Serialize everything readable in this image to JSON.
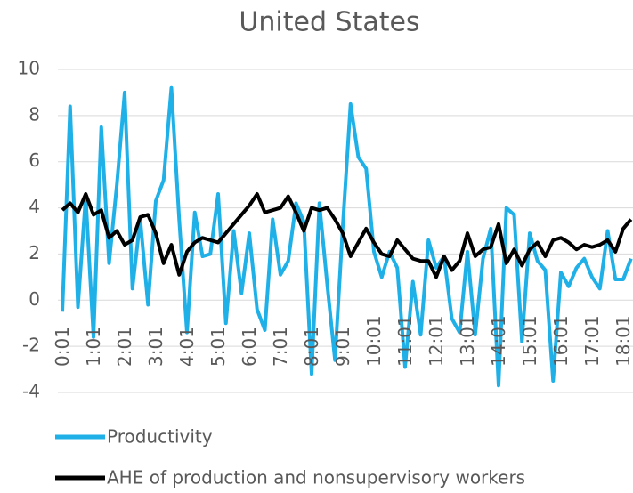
{
  "chart_data": {
    "type": "line",
    "title": "United States",
    "categories": [
      "0:01",
      null,
      null,
      null,
      "1:01",
      null,
      null,
      null,
      "2:01",
      null,
      null,
      null,
      "3:01",
      null,
      null,
      null,
      "4:01",
      null,
      null,
      null,
      "5:01",
      null,
      null,
      null,
      "6:01",
      null,
      null,
      null,
      "7:01",
      null,
      null,
      null,
      "8:01",
      null,
      null,
      null,
      "9:01",
      null,
      null,
      null,
      "10:01",
      null,
      null,
      null,
      "11:01",
      null,
      null,
      null,
      "12:01",
      null,
      null,
      null,
      "13:01",
      null,
      null,
      null,
      "14:01",
      null,
      null,
      null,
      "15:01",
      null,
      null,
      null,
      "16:01",
      null,
      null,
      null,
      "17:01",
      null,
      null,
      null,
      "18:01",
      null
    ],
    "series": [
      {
        "name": "Productivity",
        "color": "#1fb0e8",
        "values": [
          -0.5,
          8.4,
          -0.3,
          4.5,
          -1.6,
          7.5,
          1.6,
          5,
          9,
          0.5,
          3.5,
          -0.2,
          4.3,
          5.2,
          9.2,
          3.5,
          -1.4,
          3.8,
          1.9,
          2,
          4.6,
          -1,
          3,
          0.3,
          2.9,
          -0.4,
          -1.3,
          3.5,
          1.1,
          1.7,
          4.2,
          3.4,
          -3.2,
          4.2,
          0.7,
          -2.6,
          3.2,
          8.5,
          6.2,
          5.7,
          2.1,
          1,
          2.1,
          1.4,
          -2.9,
          0.8,
          -1.5,
          2.6,
          1.4,
          1.9,
          -0.8,
          -1.4,
          2.1,
          -1.5,
          1.8,
          3.1,
          -3.7,
          4,
          3.7,
          -1.8,
          2.9,
          1.7,
          1.3,
          -3.5,
          1.2,
          0.6,
          1.4,
          1.8,
          1,
          0.5,
          3,
          0.9,
          0.9,
          1.8
        ]
      },
      {
        "name": "AHE of production and nonsupervisory workers",
        "color": "#000000",
        "values": [
          3.9,
          4.2,
          3.8,
          4.6,
          3.7,
          3.9,
          2.7,
          3.0,
          2.4,
          2.6,
          3.6,
          3.7,
          2.9,
          1.6,
          2.4,
          1.1,
          2.1,
          2.5,
          2.7,
          2.6,
          2.5,
          2.9,
          3.3,
          3.7,
          4.1,
          4.6,
          3.8,
          3.9,
          4.0,
          4.5,
          3.8,
          3.0,
          4.0,
          3.9,
          4.0,
          3.5,
          2.9,
          1.9,
          2.5,
          3.1,
          2.5,
          2.0,
          1.9,
          2.6,
          2.2,
          1.8,
          1.7,
          1.7,
          1.0,
          1.9,
          1.3,
          1.7,
          2.9,
          1.9,
          2.2,
          2.3,
          3.3,
          1.6,
          2.2,
          1.5,
          2.2,
          2.5,
          1.9,
          2.6,
          2.7,
          2.5,
          2.2,
          2.4,
          2.3,
          2.4,
          2.6,
          2.1,
          3.1,
          3.5
        ]
      }
    ],
    "ylim": [
      -4,
      10
    ],
    "yticks": [
      -4,
      -2,
      0,
      2,
      4,
      6,
      8,
      10
    ],
    "grid": true
  }
}
